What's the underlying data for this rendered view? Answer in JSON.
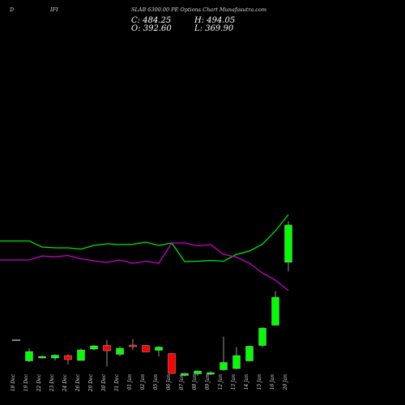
{
  "header": {
    "left1": "D",
    "left2": "IFI",
    "title": "SLAB 6300.00 PE Options Chart Munafasutra.com"
  },
  "ohlc": {
    "c_label": "C:",
    "c": "484.25",
    "h_label": "H:",
    "h": "494.05",
    "o_label": "O:",
    "o": "392.60",
    "l_label": "L:",
    "l": "369.90"
  },
  "colors": {
    "background": "#000000",
    "up": "#00ff00",
    "down": "#ff0000",
    "band_upper": "#00e600",
    "band_lower": "#cc00cc",
    "text": "#ffffff"
  },
  "chart_data": {
    "type": "candlestick",
    "title": "SLAB 6300.00 PE Options Chart Munafasutra.com",
    "x": [
      "18 Dec",
      "19 Dec",
      "22 Dec",
      "23 Dec",
      "24 Dec",
      "26 Dec",
      "29 Dec",
      "30 Dec",
      "31 Dec",
      "01 Jan",
      "02 Jan",
      "05 Jan",
      "06 Jan",
      "07 Jan",
      "08 Jan",
      "09 Jan",
      "12 Jan",
      "13 Jan",
      "14 Jan",
      "15 Jan",
      "16 Jan",
      "20 Jan"
    ],
    "candles": [
      {
        "o": 200,
        "h": 200,
        "l": 200,
        "c": 200,
        "dir": "flat"
      },
      {
        "o": 149,
        "h": 180,
        "l": 146,
        "c": 172,
        "dir": "up"
      },
      {
        "o": 157,
        "h": 162,
        "l": 155,
        "c": 160,
        "dir": "up"
      },
      {
        "o": 156,
        "h": 165,
        "l": 150,
        "c": 163,
        "dir": "up"
      },
      {
        "o": 162,
        "h": 165,
        "l": 140,
        "c": 152,
        "dir": "down"
      },
      {
        "o": 150,
        "h": 180,
        "l": 150,
        "c": 176,
        "dir": "up"
      },
      {
        "o": 178,
        "h": 188,
        "l": 175,
        "c": 186,
        "dir": "up"
      },
      {
        "o": 187,
        "h": 200,
        "l": 135,
        "c": 174,
        "dir": "down"
      },
      {
        "o": 165,
        "h": 185,
        "l": 160,
        "c": 180,
        "dir": "up"
      },
      {
        "o": 188,
        "h": 203,
        "l": 176,
        "c": 185,
        "dir": "down"
      },
      {
        "o": 187,
        "h": 188,
        "l": 172,
        "c": 171,
        "dir": "down"
      },
      {
        "o": 175,
        "h": 186,
        "l": 160,
        "c": 183,
        "dir": "up"
      },
      {
        "o": 167,
        "h": 167,
        "l": 117,
        "c": 118,
        "dir": "down"
      },
      {
        "o": 113,
        "h": 119,
        "l": 111,
        "c": 118,
        "dir": "up"
      },
      {
        "o": 117,
        "h": 125,
        "l": 112,
        "c": 124,
        "dir": "up"
      },
      {
        "o": 116,
        "h": 123,
        "l": 114,
        "c": 120,
        "dir": "up"
      },
      {
        "o": 127,
        "h": 209,
        "l": 125,
        "c": 145,
        "dir": "up"
      },
      {
        "o": 130,
        "h": 183,
        "l": 128,
        "c": 162,
        "dir": "up"
      },
      {
        "o": 149,
        "h": 187,
        "l": 147,
        "c": 185,
        "dir": "up"
      },
      {
        "o": 187,
        "h": 232,
        "l": 182,
        "c": 230,
        "dir": "up"
      },
      {
        "o": 237,
        "h": 321,
        "l": 237,
        "c": 306,
        "dir": "up"
      },
      {
        "o": 392.6,
        "h": 494.05,
        "l": 369.9,
        "c": 484.25,
        "dir": "up"
      }
    ],
    "upper_band": [
      445,
      445,
      430,
      428,
      428,
      425,
      434,
      438,
      436,
      437,
      442,
      434,
      440,
      394,
      395,
      397,
      395,
      412,
      420,
      437,
      470,
      510
    ],
    "lower_band": [
      398,
      398,
      408,
      406,
      409,
      401,
      396,
      392,
      398,
      390,
      395,
      390,
      440,
      440,
      433,
      436,
      412,
      405,
      390,
      366,
      348,
      323
    ]
  },
  "axis_labels": [
    "18 Dec",
    "19 Dec",
    "22 Dec",
    "23 Dec",
    "24 Dec",
    "26 Dec",
    "29 Dec",
    "30 Dec",
    "31 Dec",
    "01 Jan",
    "02 Jan",
    "05 Jan",
    "06 Jan",
    "07 Jan",
    "08 Jan",
    "09 Jan",
    "12 Jan",
    "13 Jan",
    "14 Jan",
    "15 Jan",
    "16 Jan",
    "20 Jan"
  ]
}
